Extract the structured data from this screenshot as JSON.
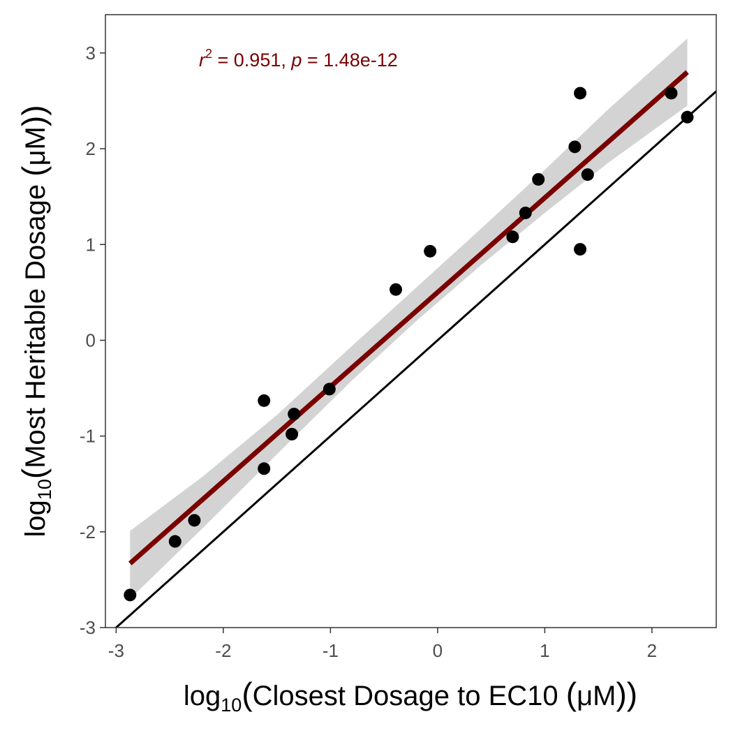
{
  "chart_data": {
    "type": "scatter",
    "x_title": {
      "log_prefix": "log",
      "log_sub": "10",
      "open_paren": "(",
      "text": "Closest Dosage to EC10 ",
      "inner_open": "(",
      "unit": "μM",
      "inner_close": ")",
      "close_paren": ")"
    },
    "y_title": {
      "log_prefix": "log",
      "log_sub": "10",
      "open_paren": "(",
      "text": "Most Heritable Dosage ",
      "inner_open": "(",
      "unit": "μM",
      "inner_close": ")",
      "close_paren": ")"
    },
    "xlim": [
      -3.1,
      2.6
    ],
    "ylim": [
      -3.0,
      3.4
    ],
    "x_ticks": [
      -3,
      -2,
      -1,
      0,
      1,
      2
    ],
    "x_tick_labels": [
      "-3",
      "-2",
      "-1",
      "0",
      "1",
      "2"
    ],
    "y_ticks": [
      -3,
      -2,
      -1,
      0,
      1,
      2,
      3
    ],
    "y_tick_labels": [
      "-3",
      "-2",
      "-1",
      "0",
      "1",
      "2",
      "3"
    ],
    "grid": false,
    "points": [
      {
        "x": -2.87,
        "y": -2.66
      },
      {
        "x": -2.45,
        "y": -2.1
      },
      {
        "x": -2.27,
        "y": -1.88
      },
      {
        "x": -1.62,
        "y": -0.63
      },
      {
        "x": -1.62,
        "y": -1.34
      },
      {
        "x": -1.34,
        "y": -0.77
      },
      {
        "x": -1.36,
        "y": -0.98
      },
      {
        "x": -1.01,
        "y": -0.51
      },
      {
        "x": -0.39,
        "y": 0.53
      },
      {
        "x": -0.07,
        "y": 0.93
      },
      {
        "x": 0.7,
        "y": 1.08
      },
      {
        "x": 0.82,
        "y": 1.33
      },
      {
        "x": 0.94,
        "y": 1.68
      },
      {
        "x": 1.28,
        "y": 2.02
      },
      {
        "x": 1.33,
        "y": 2.58
      },
      {
        "x": 1.33,
        "y": 0.95
      },
      {
        "x": 1.4,
        "y": 1.73
      },
      {
        "x": 2.18,
        "y": 2.58
      },
      {
        "x": 2.33,
        "y": 2.33
      }
    ],
    "fit_line": {
      "x": [
        -2.87,
        2.33
      ],
      "y": [
        -2.33,
        2.8
      ]
    },
    "confidence_band": {
      "x": [
        -2.87,
        -2.2,
        -1.5,
        -0.8,
        -0.2,
        0.4,
        1.0,
        1.6,
        2.33
      ],
      "upper": [
        -1.99,
        -1.43,
        -0.78,
        -0.06,
        0.55,
        1.16,
        1.78,
        2.42,
        3.15
      ],
      "lower": [
        -2.7,
        -1.97,
        -1.19,
        -0.42,
        0.2,
        0.78,
        1.33,
        1.86,
        2.45
      ]
    },
    "identity_line": {
      "x": [
        -3.1,
        2.6
      ],
      "y": [
        -3.1,
        2.6
      ]
    },
    "annotation": {
      "r_symbol": "r",
      "r_exp": "2",
      "r_text": " = 0.951,  ",
      "p_symbol": "p",
      "p_text": " = 1.48e-12"
    },
    "colors": {
      "fit_line": "#7a0000",
      "band": "#d3d3d3",
      "points": "#000000",
      "identity_line": "#000000",
      "annotation": "#7a0000",
      "panel_border": "#333333"
    }
  }
}
